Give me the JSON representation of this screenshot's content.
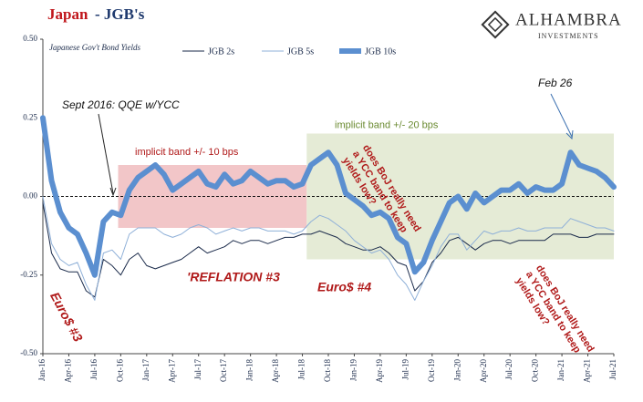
{
  "chart_data": {
    "type": "line",
    "title_parts": [
      "Japan",
      "- JGB's"
    ],
    "subtitle": "Japanese Gov't Bond Yields",
    "logo": [
      "ALHAMBRA",
      "INVESTMENTS"
    ],
    "categories": [
      "Jan-16",
      null,
      null,
      "Apr-16",
      null,
      null,
      "Jul-16",
      null,
      null,
      "Oct-16",
      null,
      null,
      "Jan-17",
      null,
      null,
      "Apr-17",
      null,
      null,
      "Jul-17",
      null,
      null,
      "Oct-17",
      null,
      null,
      "Jan-18",
      null,
      null,
      "Apr-18",
      null,
      null,
      "Jul-18",
      null,
      null,
      "Oct-18",
      null,
      null,
      "Jan-19",
      null,
      null,
      "Apr-19",
      null,
      null,
      "Jul-19",
      null,
      null,
      "Oct-19",
      null,
      null,
      "Jan-20",
      null,
      null,
      "Apr-20",
      null,
      null,
      "Jul-20",
      null,
      null,
      "Oct-20",
      null,
      null,
      "Jan-21",
      null,
      null,
      "Apr-21",
      null,
      null,
      "Jul-21"
    ],
    "series": [
      {
        "name": "JGB 2s",
        "color": "#1a2a4a",
        "width": 1,
        "values": [
          -0.02,
          -0.18,
          -0.23,
          -0.24,
          -0.24,
          -0.3,
          -0.32,
          -0.2,
          -0.22,
          -0.25,
          -0.2,
          -0.18,
          -0.22,
          -0.23,
          -0.22,
          -0.21,
          -0.2,
          -0.18,
          -0.16,
          -0.18,
          -0.17,
          -0.16,
          -0.14,
          -0.15,
          -0.14,
          -0.14,
          -0.15,
          -0.14,
          -0.13,
          -0.13,
          -0.12,
          -0.12,
          -0.11,
          -0.12,
          -0.13,
          -0.15,
          -0.16,
          -0.17,
          -0.17,
          -0.16,
          -0.18,
          -0.21,
          -0.22,
          -0.3,
          -0.27,
          -0.21,
          -0.18,
          -0.14,
          -0.13,
          -0.15,
          -0.17,
          -0.15,
          -0.14,
          -0.14,
          -0.15,
          -0.14,
          -0.14,
          -0.14,
          -0.14,
          -0.12,
          -0.12,
          -0.12,
          -0.13,
          -0.13,
          -0.12,
          -0.12,
          -0.12
        ]
      },
      {
        "name": "JGB 5s",
        "color": "#8fb0d8",
        "width": 1,
        "values": [
          0.0,
          -0.15,
          -0.2,
          -0.22,
          -0.21,
          -0.28,
          -0.33,
          -0.18,
          -0.17,
          -0.2,
          -0.12,
          -0.1,
          -0.1,
          -0.1,
          -0.12,
          -0.13,
          -0.12,
          -0.1,
          -0.09,
          -0.1,
          -0.12,
          -0.11,
          -0.1,
          -0.11,
          -0.1,
          -0.1,
          -0.11,
          -0.11,
          -0.11,
          -0.12,
          -0.11,
          -0.08,
          -0.06,
          -0.07,
          -0.09,
          -0.11,
          -0.14,
          -0.16,
          -0.18,
          -0.17,
          -0.2,
          -0.25,
          -0.28,
          -0.33,
          -0.27,
          -0.22,
          -0.16,
          -0.12,
          -0.12,
          -0.17,
          -0.14,
          -0.11,
          -0.12,
          -0.11,
          -0.11,
          -0.1,
          -0.11,
          -0.11,
          -0.1,
          -0.1,
          -0.1,
          -0.07,
          -0.08,
          -0.09,
          -0.1,
          -0.1,
          -0.11
        ]
      },
      {
        "name": "JGB 10s",
        "color": "#5b8fd0",
        "width": 6,
        "values": [
          0.25,
          0.05,
          -0.05,
          -0.1,
          -0.12,
          -0.18,
          -0.25,
          -0.08,
          -0.05,
          -0.06,
          0.02,
          0.06,
          0.08,
          0.1,
          0.07,
          0.02,
          0.04,
          0.06,
          0.08,
          0.04,
          0.03,
          0.07,
          0.04,
          0.05,
          0.08,
          0.06,
          0.04,
          0.05,
          0.05,
          0.03,
          0.04,
          0.1,
          0.12,
          0.14,
          0.1,
          0.01,
          -0.01,
          -0.03,
          -0.06,
          -0.05,
          -0.07,
          -0.13,
          -0.15,
          -0.24,
          -0.21,
          -0.14,
          -0.08,
          -0.02,
          0.0,
          -0.04,
          0.01,
          -0.02,
          0.0,
          0.02,
          0.02,
          0.04,
          0.01,
          0.03,
          0.02,
          0.02,
          0.04,
          0.14,
          0.1,
          0.09,
          0.08,
          0.06,
          0.03
        ]
      }
    ],
    "ylim": [
      -0.5,
      0.5
    ],
    "yticks": [
      {
        "value": -0.5,
        "label": "-0.50"
      },
      {
        "value": -0.25,
        "label": "-0.25"
      },
      {
        "value": 0,
        "label": "0.00"
      },
      {
        "value": 0.25,
        "label": "0.25"
      },
      {
        "value": 0.5,
        "label": "0.50"
      }
    ],
    "reference_line": 0,
    "bands": [
      {
        "x0": 8.7,
        "x1": 30.5,
        "ymin": -0.1,
        "ymax": 0.1,
        "color": "#f2c6c8",
        "label": "implicit band +/- 10 bps"
      },
      {
        "x0": 30.5,
        "x1": 66,
        "ymin": -0.2,
        "ymax": 0.2,
        "color": "#e5ebd6",
        "label": "implicit band +/- 20 bps"
      }
    ],
    "annotations": {
      "qqe": "Sept 2016:  QQE w/YCC",
      "feb": "Feb 26",
      "euro3": "Euro$ #3",
      "reflation": "'REFLATION #3",
      "euro4": "Euro$ #4",
      "question": [
        "does BoJ really need",
        "a YCC band to keep",
        "yields low?"
      ]
    }
  }
}
